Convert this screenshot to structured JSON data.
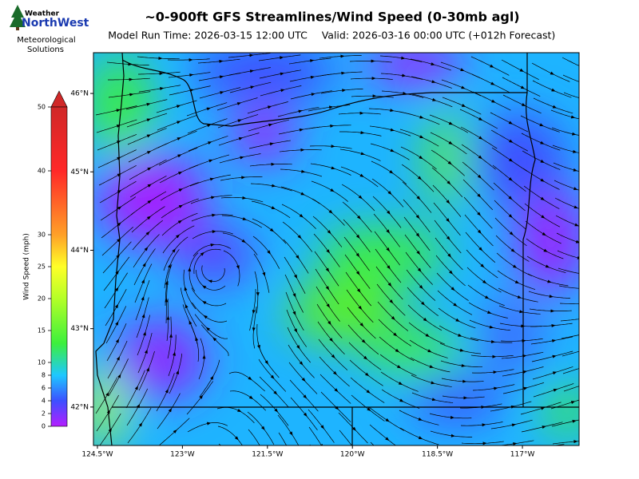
{
  "header": {
    "title": "~0-900ft GFS Streamlines/Wind Speed (0-30mb agl)",
    "model_run": "Model Run Time: 2026-03-15 12:00 UTC",
    "valid": "Valid: 2026-03-16 00:00 UTC  (+012h Forecast)"
  },
  "logo": {
    "line1": "Weather",
    "line2": "NorthWest",
    "caption": [
      "Meteorological",
      "Solutions"
    ]
  },
  "colorbar": {
    "label": "Wind Speed (mph)",
    "lim": [
      0,
      50
    ],
    "ticks": [
      0,
      2,
      4,
      6,
      8,
      10,
      15,
      20,
      25,
      30,
      40,
      50
    ]
  },
  "map": {
    "xlim": [
      -124.57,
      -116.0
    ],
    "ylim": [
      41.51,
      46.52
    ],
    "xticks": [
      {
        "value": -124.5,
        "label": "124.5°W"
      },
      {
        "value": -123,
        "label": "123°W"
      },
      {
        "value": -121.5,
        "label": "121.5°W"
      },
      {
        "value": -120,
        "label": "120°W"
      },
      {
        "value": -118.5,
        "label": "118.5°W"
      },
      {
        "value": -117,
        "label": "117°W"
      }
    ],
    "yticks": [
      {
        "value": 46,
        "label": "46°N"
      },
      {
        "value": 45,
        "label": "45°N"
      },
      {
        "value": 44,
        "label": "44°N"
      },
      {
        "value": 43,
        "label": "43°N"
      },
      {
        "value": 42,
        "label": "42°N"
      }
    ]
  }
}
